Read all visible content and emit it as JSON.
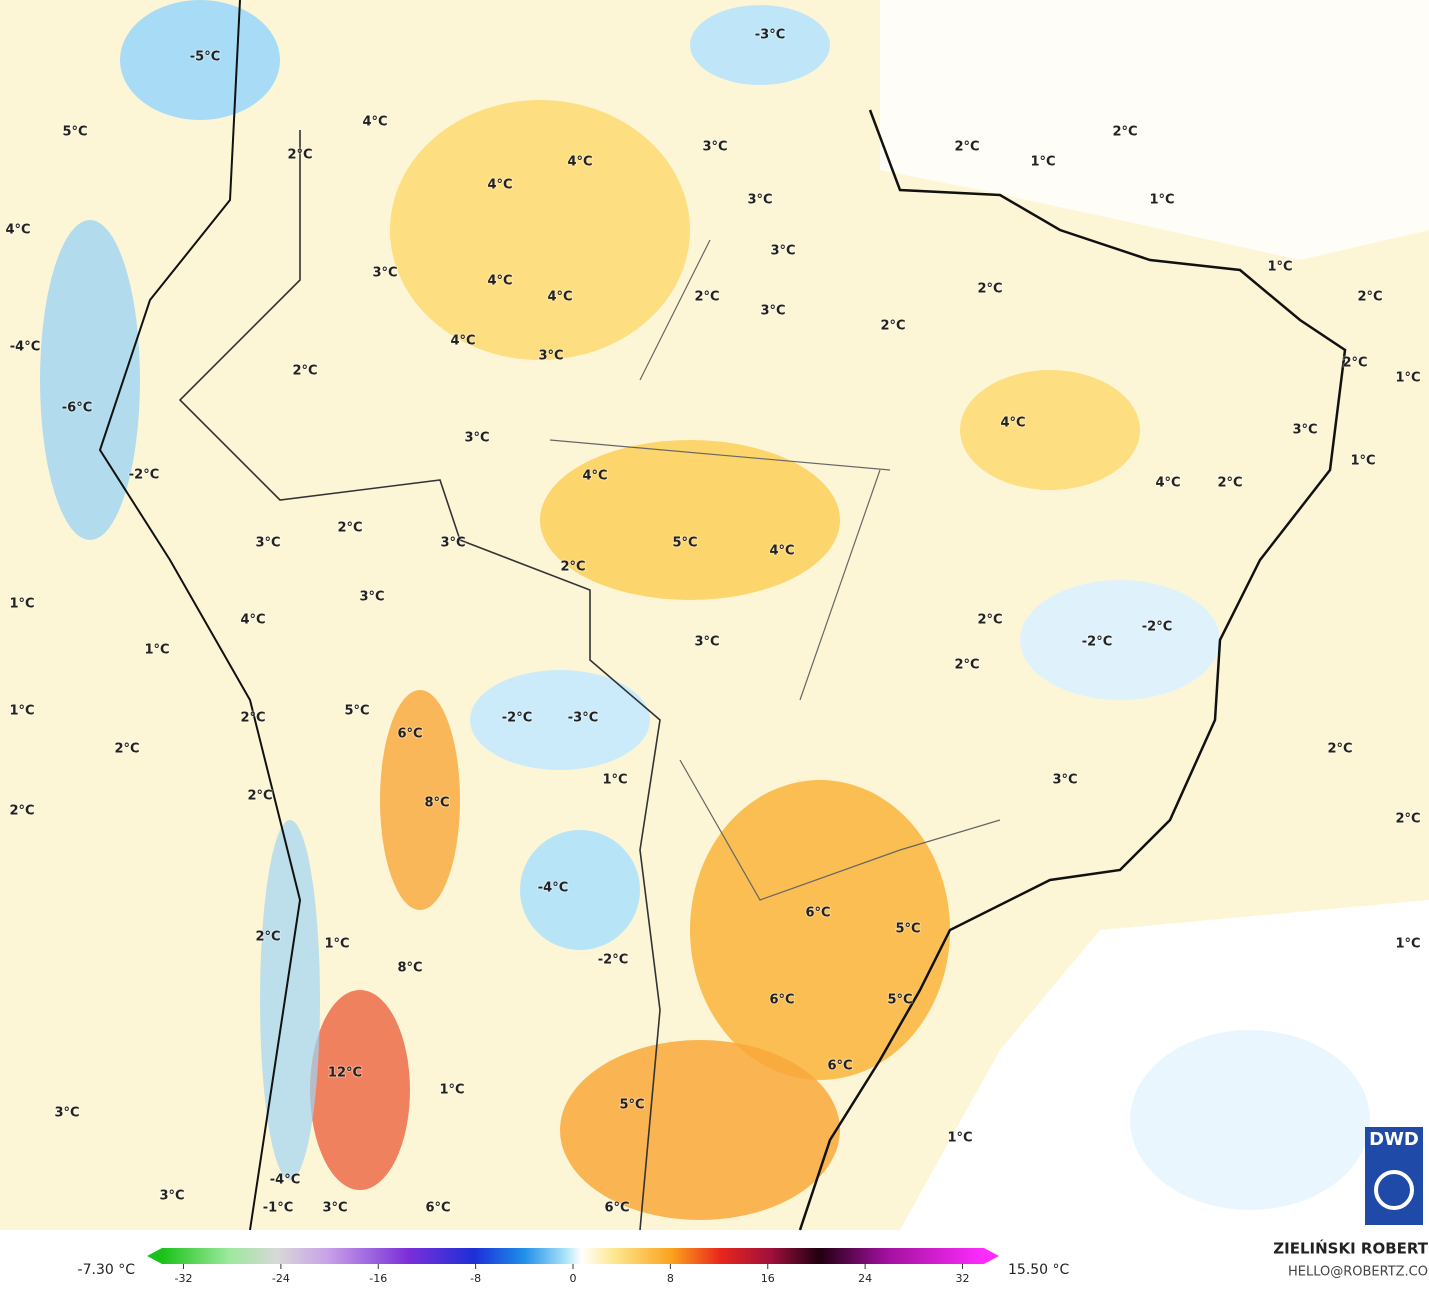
{
  "map": {
    "labels": [
      "-5°C",
      "-3°C",
      "5°C",
      "4°C",
      "2°C",
      "4°C",
      "4°C",
      "3°C",
      "3°C",
      "2°C",
      "1°C",
      "2°C",
      "1°C",
      "4°C",
      "3°C",
      "3°C",
      "4°C",
      "4°C",
      "2°C",
      "3°C",
      "2°C",
      "2°C",
      "1°C",
      "2°C",
      "4°C",
      "3°C",
      "-4°C",
      "2°C",
      "2°C",
      "1°C",
      "-6°C",
      "4°C",
      "3°C",
      "3°C",
      "1°C",
      "-2°C",
      "4°C",
      "4°C",
      "2°C",
      "2°C",
      "3°C",
      "3°C",
      "5°C",
      "4°C",
      "2°C",
      "1°C",
      "3°C",
      "4°C",
      "2°C",
      "3°C",
      "-2°C",
      "-2°C",
      "1°C",
      "2°C",
      "1°C",
      "5°C",
      "2°C",
      "-2°C",
      "-3°C",
      "6°C",
      "2°C",
      "2°C",
      "1°C",
      "3°C",
      "2°C",
      "8°C",
      "2°C",
      "2°C",
      "-4°C",
      "6°C",
      "5°C",
      "1°C",
      "2°C",
      "1°C",
      "-2°C",
      "8°C",
      "6°C",
      "5°C",
      "6°C",
      "12°C",
      "1°C",
      "5°C",
      "3°C",
      "1°C",
      "3°C",
      "-4°C",
      "-1°C",
      "3°C",
      "6°C",
      "6°C"
    ]
  },
  "colorbar": {
    "min_label": "-7.30 °C",
    "max_label": "15.50 °C",
    "lim": [
      -35,
      35
    ],
    "ticks": [
      -32,
      -24,
      -16,
      -8,
      0,
      8,
      16,
      24,
      32
    ]
  },
  "credit": {
    "name": "ZIELIŃSKI ROBERT",
    "email": "HELLO@ROBERTZ.CO",
    "logo": "DWD"
  }
}
